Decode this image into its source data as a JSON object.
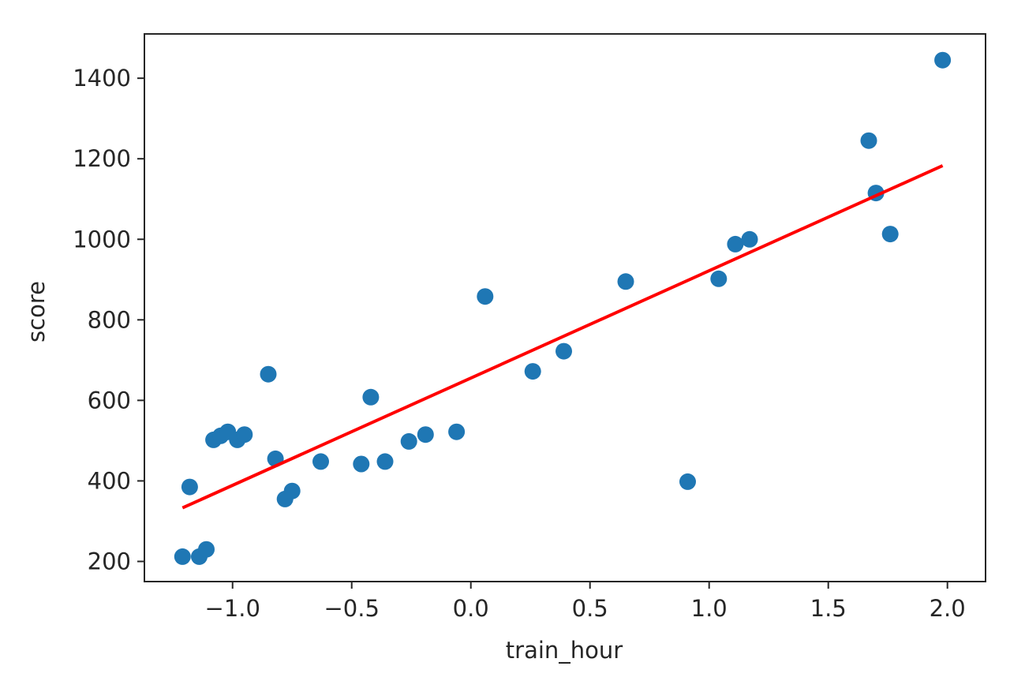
{
  "chart_data": {
    "type": "scatter",
    "title": "",
    "xlabel": "train_hour",
    "ylabel": "score",
    "xlim": [
      -1.37,
      2.16
    ],
    "ylim": [
      150,
      1510
    ],
    "x_ticks": [
      -1.0,
      -0.5,
      0.0,
      0.5,
      1.0,
      1.5,
      2.0
    ],
    "x_tick_labels": [
      "−1.0",
      "−0.5",
      "0.0",
      "0.5",
      "1.0",
      "1.5",
      "2.0"
    ],
    "y_ticks": [
      200,
      400,
      600,
      800,
      1000,
      1200,
      1400
    ],
    "y_tick_labels": [
      "200",
      "400",
      "600",
      "800",
      "1000",
      "1200",
      "1400"
    ],
    "grid": false,
    "series": [
      {
        "type": "scatter",
        "color": "#1f77b4",
        "x": [
          -1.21,
          -1.18,
          -1.14,
          -1.11,
          -1.08,
          -1.05,
          -1.02,
          -0.98,
          -0.95,
          -0.85,
          -0.82,
          -0.78,
          -0.75,
          -0.63,
          -0.46,
          -0.42,
          -0.36,
          -0.26,
          -0.19,
          -0.06,
          0.06,
          0.26,
          0.39,
          0.65,
          0.91,
          1.04,
          1.11,
          1.17,
          1.67,
          1.7,
          1.76,
          1.98
        ],
        "y": [
          212,
          385,
          212,
          230,
          502,
          512,
          522,
          502,
          515,
          665,
          455,
          355,
          375,
          448,
          442,
          608,
          448,
          498,
          515,
          522,
          858,
          672,
          722,
          895,
          398,
          902,
          988,
          1000,
          1245,
          1115,
          1013,
          1445
        ]
      },
      {
        "type": "line",
        "color": "#ff0000",
        "x": [
          -1.21,
          1.98
        ],
        "y": [
          333,
          1183
        ]
      }
    ]
  }
}
